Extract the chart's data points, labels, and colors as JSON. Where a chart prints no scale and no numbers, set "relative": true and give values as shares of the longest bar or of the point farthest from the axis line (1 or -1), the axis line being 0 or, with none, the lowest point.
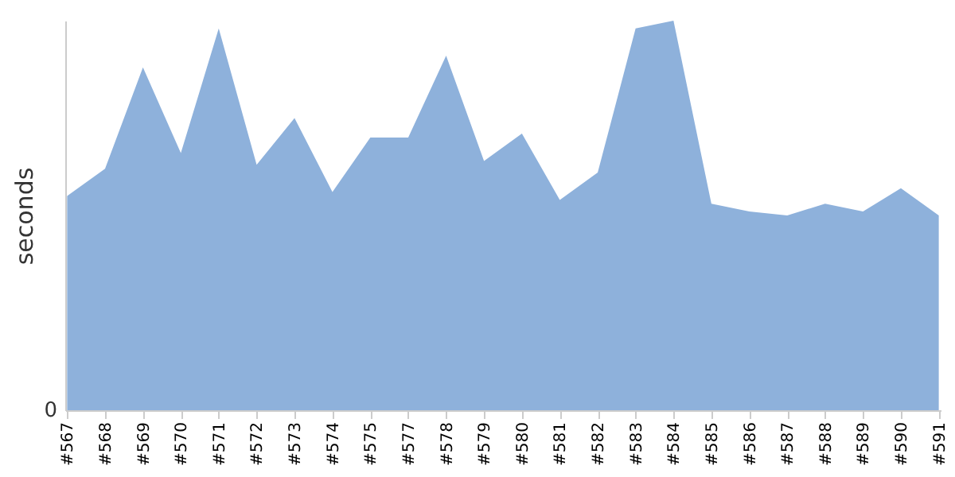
{
  "chart_data": {
    "type": "area",
    "relative": true,
    "ylabel": "seconds",
    "annotations": [
      "0"
    ],
    "grid": false,
    "categories": [
      "#567",
      "#568",
      "#569",
      "#570",
      "#571",
      "#572",
      "#573",
      "#574",
      "#575",
      "#577",
      "#578",
      "#579",
      "#580",
      "#581",
      "#582",
      "#583",
      "#584",
      "#585",
      "#586",
      "#587",
      "#588",
      "#589",
      "#590",
      "#591"
    ],
    "series": [
      {
        "color": "#8eb1db",
        "values": [
          0.55,
          0.62,
          0.88,
          0.66,
          0.98,
          0.63,
          0.75,
          0.56,
          0.7,
          0.7,
          0.91,
          0.64,
          0.71,
          0.54,
          0.61,
          0.98,
          1,
          0.53,
          0.51,
          0.5,
          0.53,
          0.51,
          0.57,
          0.5
        ]
      }
    ]
  }
}
